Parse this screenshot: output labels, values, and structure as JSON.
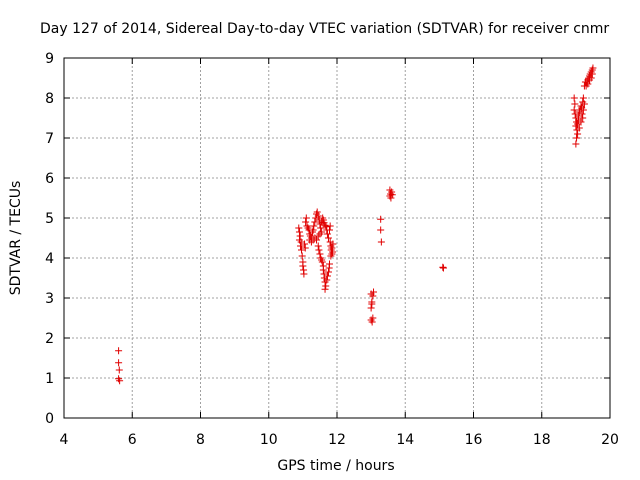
{
  "chart_data": {
    "type": "scatter",
    "title": "Day 127 of 2014, Sidereal Day-to-day VTEC variation (SDTVAR) for receiver cnmr",
    "xlabel": "GPS time / hours",
    "ylabel": "SDTVAR / TECUs",
    "xlim": [
      4,
      20
    ],
    "ylim": [
      0,
      9
    ],
    "xticks": [
      "4",
      "6",
      "8",
      "10",
      "12",
      "14",
      "16",
      "18",
      "20"
    ],
    "yticks": [
      "0",
      "1",
      "2",
      "3",
      "4",
      "5",
      "6",
      "7",
      "8",
      "9"
    ],
    "grid": true,
    "marker": "+",
    "colors": {
      "marker": "#e00000",
      "grid": "#a0a0a0",
      "axis": "#000000"
    },
    "series": [
      {
        "name": "SDTVAR",
        "points": [
          [
            5.6,
            1.68
          ],
          [
            5.6,
            1.38
          ],
          [
            5.62,
            1.2
          ],
          [
            5.6,
            0.98
          ],
          [
            5.63,
            0.93
          ],
          [
            10.88,
            4.75
          ],
          [
            10.9,
            4.65
          ],
          [
            10.92,
            4.55
          ],
          [
            10.95,
            4.4
          ],
          [
            10.93,
            4.3
          ],
          [
            10.96,
            4.2
          ],
          [
            10.98,
            4.05
          ],
          [
            11.0,
            3.9
          ],
          [
            11.0,
            3.8
          ],
          [
            11.02,
            3.7
          ],
          [
            11.03,
            3.6
          ],
          [
            10.9,
            4.45
          ],
          [
            11.05,
            4.35
          ],
          [
            11.07,
            4.25
          ],
          [
            11.08,
            4.9
          ],
          [
            11.1,
            5.0
          ],
          [
            11.12,
            4.8
          ],
          [
            11.15,
            4.75
          ],
          [
            11.18,
            4.7
          ],
          [
            11.2,
            4.6
          ],
          [
            11.22,
            4.55
          ],
          [
            11.25,
            4.5
          ],
          [
            11.28,
            4.65
          ],
          [
            11.3,
            4.7
          ],
          [
            11.32,
            4.8
          ],
          [
            11.35,
            4.9
          ],
          [
            11.38,
            5.0
          ],
          [
            11.4,
            5.1
          ],
          [
            11.42,
            5.15
          ],
          [
            11.45,
            5.05
          ],
          [
            11.48,
            4.95
          ],
          [
            11.5,
            4.85
          ],
          [
            11.52,
            4.75
          ],
          [
            11.55,
            4.9
          ],
          [
            11.58,
            5.0
          ],
          [
            11.6,
            4.95
          ],
          [
            11.62,
            4.88
          ],
          [
            11.65,
            4.82
          ],
          [
            11.68,
            4.78
          ],
          [
            11.7,
            4.7
          ],
          [
            11.72,
            4.6
          ],
          [
            11.75,
            4.5
          ],
          [
            11.2,
            4.45
          ],
          [
            11.25,
            4.4
          ],
          [
            11.3,
            4.45
          ],
          [
            11.35,
            4.5
          ],
          [
            11.4,
            4.45
          ],
          [
            11.45,
            4.55
          ],
          [
            11.5,
            4.6
          ],
          [
            11.55,
            4.65
          ],
          [
            11.45,
            4.3
          ],
          [
            11.47,
            4.2
          ],
          [
            11.5,
            4.1
          ],
          [
            11.52,
            4.0
          ],
          [
            11.55,
            3.95
          ],
          [
            11.57,
            3.9
          ],
          [
            11.6,
            3.8
          ],
          [
            11.6,
            3.7
          ],
          [
            11.62,
            3.6
          ],
          [
            11.63,
            3.5
          ],
          [
            11.65,
            3.4
          ],
          [
            11.67,
            3.3
          ],
          [
            11.65,
            3.22
          ],
          [
            11.7,
            3.45
          ],
          [
            11.72,
            3.55
          ],
          [
            11.75,
            3.65
          ],
          [
            11.77,
            3.75
          ],
          [
            11.78,
            3.85
          ],
          [
            11.8,
            4.4
          ],
          [
            11.82,
            4.3
          ],
          [
            11.83,
            4.2
          ],
          [
            11.85,
            4.25
          ],
          [
            11.87,
            4.15
          ],
          [
            11.82,
            4.05
          ],
          [
            11.85,
            4.1
          ],
          [
            11.88,
            4.35
          ],
          [
            11.8,
            4.8
          ],
          [
            11.78,
            4.7
          ],
          [
            13.0,
            3.1
          ],
          [
            13.02,
            2.9
          ],
          [
            13.05,
            3.05
          ],
          [
            13.07,
            3.15
          ],
          [
            13.0,
            2.75
          ],
          [
            13.02,
            2.85
          ],
          [
            13.05,
            2.5
          ],
          [
            13.0,
            2.45
          ],
          [
            13.03,
            2.4
          ],
          [
            13.28,
            4.97
          ],
          [
            13.28,
            4.7
          ],
          [
            13.3,
            4.4
          ],
          [
            13.55,
            5.7
          ],
          [
            13.55,
            5.55
          ],
          [
            13.57,
            5.6
          ],
          [
            13.58,
            5.5
          ],
          [
            13.6,
            5.65
          ],
          [
            13.62,
            5.58
          ],
          [
            15.1,
            3.77
          ],
          [
            15.12,
            3.75
          ],
          [
            18.95,
            8.0
          ],
          [
            18.97,
            7.85
          ],
          [
            18.95,
            7.7
          ],
          [
            18.98,
            7.6
          ],
          [
            19.0,
            7.5
          ],
          [
            19.02,
            7.4
          ],
          [
            19.0,
            7.3
          ],
          [
            19.03,
            7.2
          ],
          [
            19.05,
            7.1
          ],
          [
            19.02,
            7.0
          ],
          [
            19.0,
            6.85
          ],
          [
            19.05,
            7.35
          ],
          [
            19.08,
            7.45
          ],
          [
            19.1,
            7.25
          ],
          [
            19.07,
            7.55
          ],
          [
            19.1,
            7.65
          ],
          [
            19.12,
            7.7
          ],
          [
            19.15,
            7.8
          ],
          [
            19.17,
            7.75
          ],
          [
            19.2,
            7.9
          ],
          [
            19.22,
            8.0
          ],
          [
            19.18,
            7.6
          ],
          [
            19.2,
            7.5
          ],
          [
            19.15,
            7.4
          ],
          [
            19.22,
            7.7
          ],
          [
            19.25,
            7.85
          ],
          [
            19.25,
            8.3
          ],
          [
            19.28,
            8.4
          ],
          [
            19.3,
            8.3
          ],
          [
            19.32,
            8.4
          ],
          [
            19.35,
            8.45
          ],
          [
            19.38,
            8.5
          ],
          [
            19.4,
            8.55
          ],
          [
            19.42,
            8.6
          ],
          [
            19.45,
            8.65
          ],
          [
            19.48,
            8.7
          ],
          [
            19.5,
            8.75
          ],
          [
            19.35,
            8.35
          ],
          [
            19.4,
            8.45
          ],
          [
            19.45,
            8.5
          ],
          [
            19.48,
            8.6
          ]
        ]
      }
    ]
  }
}
